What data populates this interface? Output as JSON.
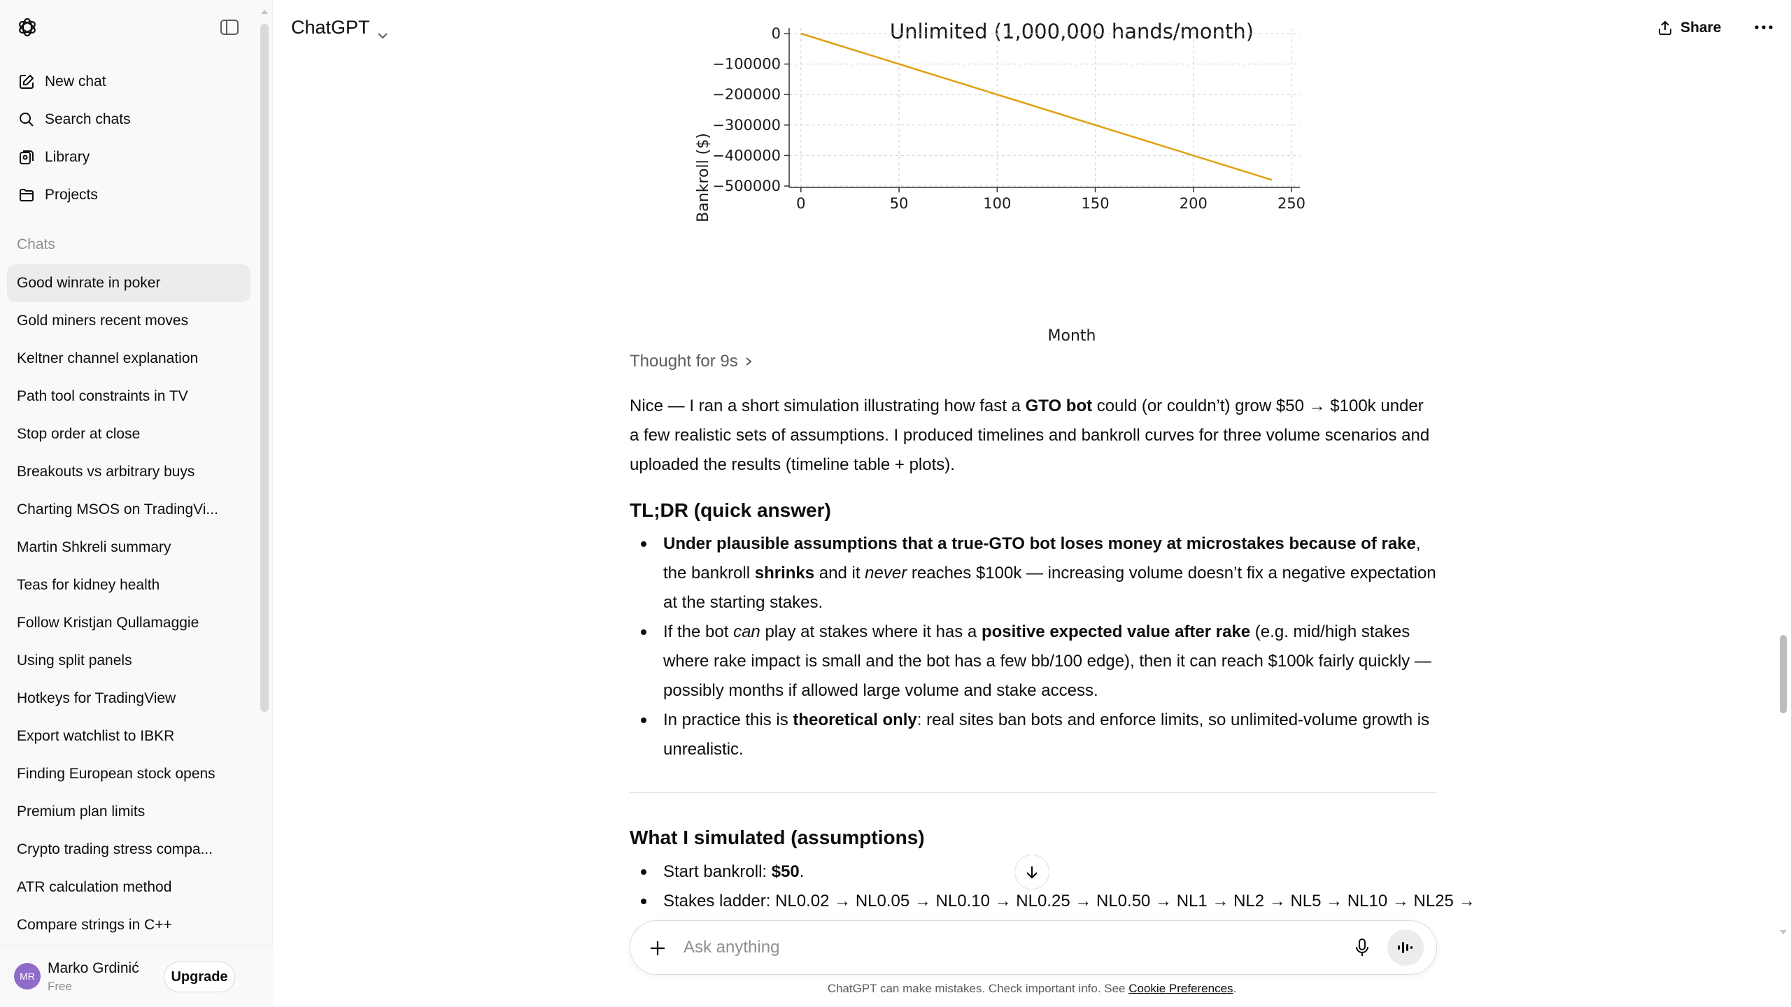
{
  "sidebar": {
    "actions": {
      "new_chat": "New chat",
      "search_chats": "Search chats",
      "library": "Library",
      "projects": "Projects"
    },
    "section_label": "Chats",
    "chats": [
      "Good winrate in poker",
      "Gold miners recent moves",
      "Keltner channel explanation",
      "Path tool constraints in TV",
      "Stop order at close",
      "Breakouts vs arbitrary buys",
      "Charting MSOS on TradingVi...",
      "Martin Shkreli summary",
      "Teas for kidney health",
      "Follow Kristjan Qullamaggie",
      "Using split panels",
      "Hotkeys for TradingView",
      "Export watchlist to IBKR",
      "Finding European stock opens",
      "Premium plan limits",
      "Crypto trading stress compa...",
      "ATR calculation method",
      "Compare strings in C++"
    ],
    "active_chat_index": 0,
    "user": {
      "initials": "MR",
      "name": "Marko Grdinić",
      "plan": "Free",
      "upgrade_label": "Upgrade"
    }
  },
  "header": {
    "model": "ChatGPT",
    "share_label": "Share"
  },
  "chart_data": {
    "type": "line",
    "title": "Unlimited (1,000,000 hands/month)",
    "xlabel": "Month",
    "ylabel": "Bankroll ($)",
    "xlim": [
      -6,
      250
    ],
    "ylim": [
      -500000,
      0
    ],
    "xticks": [
      0,
      50,
      100,
      150,
      200,
      250
    ],
    "yticks": [
      0,
      -100000,
      -200000,
      -300000,
      -400000,
      -500000
    ],
    "ytick_labels": [
      "0",
      "−100000",
      "−200000",
      "−300000",
      "−400000",
      "−500000"
    ],
    "grid": true,
    "series": [
      {
        "x": [
          0,
          240
        ],
        "y": [
          0,
          -480000
        ],
        "color": "#e0a00e"
      }
    ]
  },
  "message": {
    "thought_label": "Thought for 9s",
    "intro": {
      "a": "Nice — I ran a short simulation illustrating how fast a ",
      "b": "GTO bot",
      "c": " could (or couldn’t) grow $50 → $100k under a few realistic sets of assumptions. I produced timelines and bankroll curves for three volume scenarios and uploaded the results (timeline table + plots)."
    },
    "tldr_heading": "TL;DR (quick answer)",
    "tldr": {
      "b1": {
        "a": "Under plausible assumptions that a true-GTO bot loses money at microstakes because of rake",
        "b": ", the bankroll ",
        "c": "shrinks",
        "d": " and it ",
        "e": "never",
        "f": " reaches $100k — increasing volume doesn’t fix a negative expectation at the starting stakes."
      },
      "b2": {
        "a": "If the bot ",
        "b": "can",
        "c": " play at stakes where it has a ",
        "d": "positive expected value after rake",
        "e": " (e.g. mid/high stakes where rake impact is small and the bot has a few bb/100 edge), then it can reach $100k fairly quickly — possibly months if allowed large volume and stake access."
      },
      "b3": {
        "a": "In practice this is ",
        "b": "theoretical only",
        "c": ": real sites ban bots and enforce limits, so unlimited-volume growth is unrealistic."
      }
    },
    "assumptions_heading": "What I simulated (assumptions)",
    "assumptions": {
      "b1": {
        "a": "Start bankroll: ",
        "b": "$50",
        "c": "."
      },
      "b2": "Stakes ladder: NL0.02 → NL0.05 → NL0.10 → NL0.25 → NL0.50 → NL1 → NL2 → NL5 → NL10 → NL25 →"
    }
  },
  "composer": {
    "placeholder": "Ask anything"
  },
  "footer": {
    "text": "ChatGPT can make mistakes. Check important info. See ",
    "link": "Cookie Preferences",
    "end": "."
  }
}
